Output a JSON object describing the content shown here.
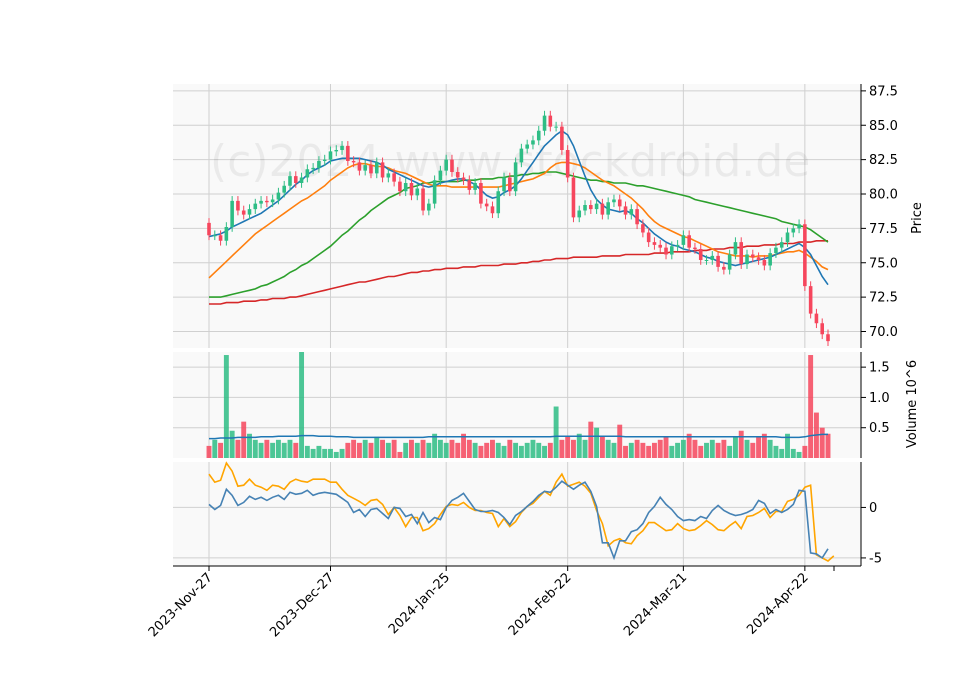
{
  "chart_data": [
    {
      "panel": "price",
      "type": "candlestick",
      "ylabel": "Price",
      "ylim": [
        68.8,
        88.0
      ],
      "yticks": [
        70.0,
        72.5,
        75.0,
        77.5,
        80.0,
        82.5,
        85.0,
        87.5
      ],
      "ytick_labels": [
        "70.0",
        "72.5",
        "75.0",
        "77.5",
        "80.0",
        "82.5",
        "85.0",
        "87.5"
      ],
      "colors": {
        "up": "#2ebd85",
        "down": "#f6465d",
        "ma_fast": "#1f77b4",
        "ma_mid": "#ff7f0e",
        "ma_slow": "#2ca02c",
        "ma_long": "#d62728"
      },
      "candles_close": [
        77.0,
        77.0,
        76.6,
        77.6,
        79.5,
        78.8,
        78.5,
        78.9,
        79.3,
        79.5,
        79.4,
        79.6,
        80.1,
        80.6,
        81.3,
        80.8,
        81.2,
        81.8,
        81.9,
        82.4,
        82.5,
        83.1,
        83.2,
        83.5,
        82.4,
        82.3,
        81.7,
        82.1,
        81.5,
        82.3,
        81.2,
        81.5,
        80.9,
        80.2,
        80.8,
        79.9,
        80.4,
        78.8,
        79.3,
        81.0,
        81.7,
        82.5,
        81.6,
        81.2,
        81.0,
        80.3,
        80.8,
        79.3,
        79.1,
        78.6,
        80.2,
        81.2,
        80.2,
        82.3,
        83.3,
        83.6,
        83.9,
        84.6,
        85.7,
        84.9,
        84.9,
        83.2,
        81.2,
        78.3,
        78.8,
        79.2,
        78.9,
        79.3,
        78.5,
        79.4,
        79.6,
        79.1,
        78.5,
        78.9,
        77.8,
        77.2,
        76.5,
        76.3,
        76.1,
        75.6,
        76.2,
        76.3,
        77.0,
        76.1,
        76.0,
        75.2,
        75.2,
        75.5,
        74.7,
        74.5,
        75.6,
        76.5,
        74.9,
        75.6,
        75.4,
        75.2,
        74.8,
        75.7,
        76.1,
        76.5,
        77.2,
        77.5,
        77.8,
        73.3,
        71.3,
        70.6,
        69.8,
        69.3
      ],
      "ma_fast": [
        76.9,
        77.0,
        77.1,
        77.3,
        77.6,
        77.8,
        78.0,
        78.2,
        78.4,
        78.6,
        78.9,
        79.2,
        79.5,
        79.9,
        80.3,
        80.7,
        81.0,
        81.4,
        81.7,
        81.9,
        82.1,
        82.4,
        82.5,
        82.6,
        82.6,
        82.6,
        82.6,
        82.5,
        82.4,
        82.3,
        82.1,
        81.8,
        81.6,
        81.4,
        81.2,
        81.0,
        80.8,
        80.6,
        80.5,
        80.6,
        80.8,
        80.9,
        81.0,
        81.1,
        81.1,
        80.9,
        80.7,
        80.3,
        79.9,
        79.7,
        79.8,
        80.1,
        80.3,
        80.6,
        81.1,
        81.7,
        82.3,
        82.9,
        83.5,
        83.9,
        84.3,
        84.6,
        84.3,
        83.5,
        82.4,
        81.3,
        80.3,
        79.6,
        79.2,
        78.9,
        78.8,
        78.7,
        78.8,
        78.6,
        78.2,
        77.9,
        77.5,
        77.1,
        76.8,
        76.5,
        76.3,
        76.2,
        76.0,
        75.9,
        75.8,
        75.6,
        75.4,
        75.3,
        75.1,
        75.0,
        74.9,
        74.8,
        74.9,
        75.0,
        75.1,
        75.2,
        75.3,
        75.4,
        75.6,
        75.8,
        76.0,
        76.2,
        76.4,
        76.1,
        75.6,
        74.8,
        74.0,
        73.4
      ],
      "ma_mid": [
        73.9,
        74.3,
        74.7,
        75.1,
        75.5,
        75.9,
        76.3,
        76.7,
        77.1,
        77.4,
        77.7,
        78.0,
        78.3,
        78.6,
        78.9,
        79.2,
        79.5,
        79.7,
        80.0,
        80.3,
        80.6,
        81.0,
        81.3,
        81.6,
        81.9,
        82.1,
        82.2,
        82.2,
        82.1,
        82.0,
        82.0,
        81.9,
        81.7,
        81.6,
        81.5,
        81.3,
        81.1,
        80.9,
        80.7,
        80.6,
        80.6,
        80.6,
        80.5,
        80.5,
        80.5,
        80.5,
        80.5,
        80.5,
        80.5,
        80.5,
        80.5,
        80.6,
        80.7,
        80.8,
        80.9,
        81.0,
        81.1,
        81.3,
        81.5,
        81.9,
        82.2,
        82.3,
        82.3,
        82.2,
        82.1,
        81.9,
        81.6,
        81.3,
        81.0,
        80.8,
        80.6,
        80.3,
        80.0,
        79.7,
        79.3,
        78.9,
        78.4,
        78.0,
        77.7,
        77.5,
        77.3,
        77.1,
        76.9,
        76.8,
        76.6,
        76.4,
        76.2,
        76.0,
        75.8,
        75.7,
        75.6,
        75.5,
        75.5,
        75.5,
        75.4,
        75.5,
        75.5,
        75.5,
        75.6,
        75.7,
        75.8,
        75.8,
        75.9,
        75.7,
        75.4,
        75.1,
        74.7,
        74.5
      ],
      "ma_slow": [
        72.5,
        72.5,
        72.5,
        72.6,
        72.7,
        72.8,
        72.9,
        73.0,
        73.1,
        73.3,
        73.4,
        73.6,
        73.8,
        74.0,
        74.3,
        74.5,
        74.8,
        75.0,
        75.3,
        75.6,
        75.9,
        76.2,
        76.6,
        77.0,
        77.3,
        77.7,
        78.1,
        78.4,
        78.8,
        79.1,
        79.4,
        79.7,
        79.9,
        80.1,
        80.4,
        80.5,
        80.6,
        80.8,
        80.8,
        80.9,
        80.9,
        80.9,
        80.9,
        80.9,
        81.0,
        81.0,
        81.0,
        81.1,
        81.1,
        81.1,
        81.2,
        81.2,
        81.3,
        81.3,
        81.4,
        81.4,
        81.5,
        81.5,
        81.6,
        81.6,
        81.6,
        81.5,
        81.4,
        81.3,
        81.2,
        81.1,
        81.0,
        81.0,
        80.9,
        80.9,
        80.8,
        80.8,
        80.8,
        80.7,
        80.6,
        80.6,
        80.5,
        80.4,
        80.3,
        80.2,
        80.1,
        80.0,
        79.9,
        79.8,
        79.6,
        79.5,
        79.4,
        79.3,
        79.2,
        79.1,
        79.0,
        78.9,
        78.8,
        78.7,
        78.6,
        78.5,
        78.4,
        78.3,
        78.2,
        78.0,
        77.9,
        77.8,
        77.7,
        77.6,
        77.4,
        77.1,
        76.8,
        76.5
      ],
      "ma_long": [
        72.0,
        72.0,
        72.0,
        72.1,
        72.1,
        72.1,
        72.2,
        72.2,
        72.2,
        72.3,
        72.3,
        72.4,
        72.4,
        72.4,
        72.5,
        72.5,
        72.6,
        72.7,
        72.8,
        72.9,
        73.0,
        73.1,
        73.2,
        73.3,
        73.4,
        73.5,
        73.6,
        73.6,
        73.7,
        73.8,
        73.9,
        74.0,
        74.0,
        74.1,
        74.2,
        74.3,
        74.3,
        74.4,
        74.4,
        74.5,
        74.5,
        74.6,
        74.6,
        74.6,
        74.7,
        74.7,
        74.7,
        74.8,
        74.8,
        74.8,
        74.8,
        74.9,
        74.9,
        74.9,
        75.0,
        75.0,
        75.1,
        75.1,
        75.2,
        75.2,
        75.3,
        75.3,
        75.3,
        75.4,
        75.4,
        75.4,
        75.4,
        75.4,
        75.5,
        75.5,
        75.5,
        75.5,
        75.6,
        75.6,
        75.6,
        75.6,
        75.6,
        75.7,
        75.7,
        75.7,
        75.8,
        75.8,
        75.8,
        75.8,
        75.9,
        75.9,
        75.9,
        76.0,
        76.0,
        76.0,
        76.1,
        76.1,
        76.1,
        76.2,
        76.2,
        76.2,
        76.3,
        76.3,
        76.3,
        76.4,
        76.4,
        76.4,
        76.5,
        76.5,
        76.5,
        76.6,
        76.6,
        76.6
      ]
    },
    {
      "panel": "volume",
      "type": "bar",
      "ylabel": "Volume  10^6",
      "ylim": [
        0,
        1.75
      ],
      "yticks": [
        0.5,
        1.0,
        1.5
      ],
      "ytick_labels": [
        "0.5",
        "1.0",
        "1.5"
      ],
      "volume_millions": [
        0.2,
        0.3,
        0.25,
        1.7,
        0.45,
        0.3,
        0.6,
        0.4,
        0.3,
        0.25,
        0.3,
        0.25,
        0.3,
        0.25,
        0.3,
        0.25,
        1.75,
        0.2,
        0.15,
        0.2,
        0.15,
        0.15,
        0.1,
        0.15,
        0.25,
        0.3,
        0.25,
        0.3,
        0.25,
        0.35,
        0.3,
        0.25,
        0.3,
        0.1,
        0.25,
        0.3,
        0.25,
        0.3,
        0.25,
        0.4,
        0.3,
        0.25,
        0.3,
        0.25,
        0.4,
        0.3,
        0.25,
        0.2,
        0.25,
        0.3,
        0.25,
        0.2,
        0.3,
        0.25,
        0.2,
        0.25,
        0.3,
        0.25,
        0.2,
        0.25,
        0.85,
        0.3,
        0.35,
        0.3,
        0.4,
        0.3,
        0.6,
        0.5,
        0.35,
        0.3,
        0.25,
        0.55,
        0.2,
        0.25,
        0.3,
        0.25,
        0.2,
        0.25,
        0.3,
        0.35,
        0.2,
        0.25,
        0.3,
        0.4,
        0.3,
        0.2,
        0.25,
        0.3,
        0.25,
        0.3,
        0.2,
        0.35,
        0.45,
        0.3,
        0.25,
        0.35,
        0.4,
        0.3,
        0.2,
        0.15,
        0.4,
        0.15,
        0.1,
        0.2,
        1.7,
        0.75,
        0.5,
        0.4
      ],
      "volume_avg": [
        0.32,
        0.32,
        0.33,
        0.33,
        0.33,
        0.34,
        0.34,
        0.34,
        0.34,
        0.35,
        0.35,
        0.35,
        0.36,
        0.36,
        0.36,
        0.36,
        0.37,
        0.37,
        0.37,
        0.36,
        0.36,
        0.36,
        0.35,
        0.35,
        0.35,
        0.34,
        0.34,
        0.34,
        0.34,
        0.34,
        0.34,
        0.34,
        0.34,
        0.34,
        0.34,
        0.34,
        0.34,
        0.34,
        0.35,
        0.35,
        0.35,
        0.35,
        0.35,
        0.35,
        0.35,
        0.35,
        0.35,
        0.35,
        0.35,
        0.35,
        0.35,
        0.35,
        0.35,
        0.35,
        0.35,
        0.35,
        0.35,
        0.35,
        0.35,
        0.35,
        0.36,
        0.36,
        0.36,
        0.36,
        0.36,
        0.36,
        0.36,
        0.36,
        0.36,
        0.36,
        0.36,
        0.36,
        0.35,
        0.35,
        0.35,
        0.35,
        0.35,
        0.35,
        0.35,
        0.35,
        0.35,
        0.35,
        0.35,
        0.35,
        0.35,
        0.35,
        0.35,
        0.35,
        0.35,
        0.35,
        0.35,
        0.35,
        0.35,
        0.35,
        0.35,
        0.35,
        0.35,
        0.35,
        0.35,
        0.34,
        0.34,
        0.34,
        0.34,
        0.35,
        0.37,
        0.38,
        0.39,
        0.39
      ],
      "colors": {
        "avg": "#1f77b4"
      }
    },
    {
      "panel": "oscillator",
      "type": "line",
      "ylim": [
        -5.8,
        4.5
      ],
      "yticks": [
        -5,
        0
      ],
      "ytick_labels": [
        "-5",
        "0"
      ],
      "xtick_labels": [
        "2023-Nov-27",
        "2023-Dec-27",
        "2024-Jan-25",
        "2024-Feb-22",
        "2024-Mar-21",
        "2024-Apr-22"
      ],
      "xtick_index": [
        0,
        21,
        41,
        62,
        82,
        103
      ],
      "colors": {
        "line1": "#4682b4",
        "line2": "#ffa500"
      },
      "line1": [
        0.3,
        -0.2,
        0.2,
        1.8,
        1.2,
        0.2,
        0.5,
        1.1,
        0.8,
        1.0,
        0.7,
        1.0,
        1.2,
        0.8,
        1.5,
        1.3,
        1.4,
        1.7,
        1.2,
        1.4,
        1.5,
        1.4,
        1.3,
        0.9,
        0.5,
        -0.5,
        -0.2,
        -0.9,
        -0.2,
        -0.1,
        -0.6,
        -1.1,
        0.0,
        -0.1,
        -0.9,
        -0.7,
        -1.6,
        -0.5,
        -1.5,
        -1.0,
        -1.2,
        0.0,
        0.7,
        1.0,
        1.4,
        0.6,
        -0.2,
        -0.4,
        -0.4,
        -0.3,
        -0.5,
        -1.0,
        -1.7,
        -0.8,
        -0.4,
        0.1,
        0.6,
        1.2,
        1.6,
        1.5,
        2.0,
        2.6,
        2.2,
        1.8,
        2.2,
        2.5,
        1.6,
        0.1,
        -3.5,
        -3.5,
        -5.0,
        -3.3,
        -3.3,
        -2.4,
        -2.2,
        -1.6,
        -0.5,
        0.1,
        1.0,
        0.3,
        -0.2,
        -0.9,
        -1.3,
        -1.2,
        -1.3,
        -0.9,
        -1.1,
        -0.3,
        0.2,
        -0.3,
        -0.6,
        -0.8,
        -0.7,
        -0.5,
        -0.2,
        0.7,
        0.4,
        -0.6,
        -0.2,
        -0.5,
        -0.2,
        0.3,
        1.7,
        1.6,
        -4.5,
        -4.6,
        -5.0,
        -4.1
      ],
      "line2": [
        3.3,
        2.5,
        2.7,
        4.4,
        3.6,
        2.1,
        2.2,
        2.8,
        2.2,
        2.0,
        1.7,
        2.2,
        2.1,
        1.8,
        2.5,
        2.8,
        2.6,
        2.5,
        2.8,
        2.8,
        2.8,
        2.5,
        2.5,
        1.8,
        1.2,
        0.9,
        0.6,
        0.2,
        0.7,
        0.8,
        0.3,
        -0.7,
        0.0,
        -0.8,
        -1.9,
        -1.0,
        -1.0,
        -2.3,
        -2.1,
        -1.6,
        -0.7,
        0.1,
        0.3,
        0.2,
        0.5,
        0.0,
        -0.3,
        -0.3,
        -0.5,
        -0.6,
        -1.9,
        -1.1,
        -1.9,
        -1.4,
        -0.5,
        0.1,
        0.4,
        1.0,
        1.6,
        1.2,
        2.5,
        3.3,
        2.1,
        2.3,
        2.5,
        2.1,
        1.4,
        -0.3,
        -1.6,
        -3.8,
        -3.3,
        -3.1,
        -3.5,
        -3.6,
        -2.8,
        -2.3,
        -1.5,
        -1.5,
        -1.9,
        -2.3,
        -2.2,
        -1.6,
        -2.1,
        -2.3,
        -2.2,
        -1.8,
        -1.3,
        -1.7,
        -2.2,
        -2.3,
        -1.8,
        -1.4,
        -2.1,
        -0.9,
        -0.8,
        -0.5,
        -0.1,
        -1.0,
        -0.4,
        -0.4,
        0.6,
        0.8,
        1.2,
        2.0,
        2.2,
        -4.7,
        -5.0,
        -5.3,
        -4.8
      ]
    }
  ],
  "watermark": "(c)2024 www.stockdroid.de"
}
